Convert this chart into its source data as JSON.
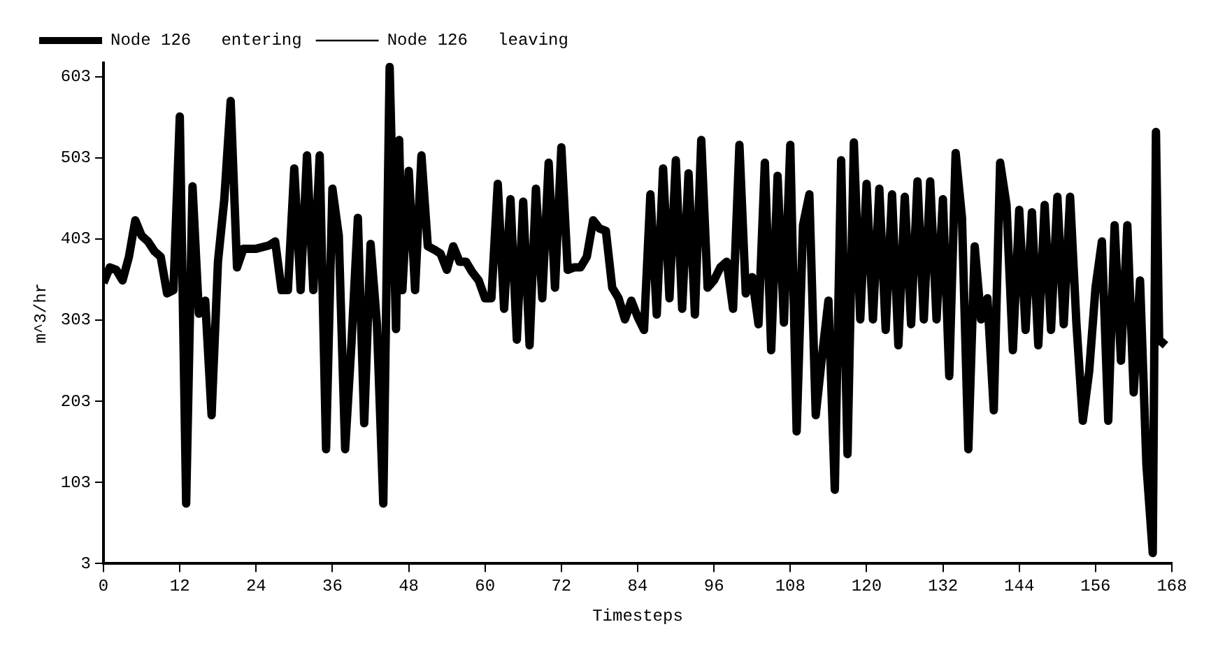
{
  "chart_data": {
    "type": "line",
    "xlabel": "Timesteps",
    "ylabel": "m^3/hr",
    "x": [
      0,
      1,
      2,
      3,
      4,
      5,
      6,
      7,
      8,
      9,
      10,
      11,
      12,
      13,
      14,
      15,
      16,
      17,
      18,
      19,
      20,
      21,
      22,
      24,
      26,
      27,
      28,
      29,
      30,
      31,
      32,
      33,
      34,
      35,
      36,
      37,
      38,
      39,
      40,
      41,
      42,
      43,
      44,
      45,
      46,
      46.5,
      47,
      48,
      49,
      50,
      51,
      52,
      53,
      54,
      55,
      56,
      57,
      58,
      59,
      60,
      61,
      62,
      63,
      64,
      65,
      66,
      67,
      68,
      69,
      70,
      71,
      72,
      73,
      74,
      75,
      76,
      77,
      78,
      79,
      80,
      81,
      82,
      83,
      84,
      85,
      86,
      87,
      88,
      89,
      90,
      91,
      92,
      93,
      94,
      95,
      96,
      97,
      98,
      99,
      100,
      101,
      102,
      103,
      104,
      105,
      106,
      107,
      108,
      109,
      110,
      111,
      112,
      113,
      114,
      115,
      116,
      117,
      118,
      119,
      120,
      121,
      122,
      123,
      124,
      125,
      126,
      127,
      128,
      129,
      130,
      131,
      132,
      133,
      134,
      135,
      136,
      137,
      138,
      139,
      140,
      141,
      142,
      143,
      144,
      145,
      146,
      147,
      148,
      149,
      150,
      151,
      152,
      153,
      154,
      155,
      156,
      157,
      158,
      159,
      160,
      161,
      162,
      163,
      164,
      165,
      165.5,
      166,
      167
    ],
    "series": [
      {
        "name": "Node 126   entering",
        "color": "#000000",
        "values": [
          349,
          368,
          365,
          352,
          381,
          426,
          407,
          400,
          388,
          381,
          336,
          340,
          554,
          77,
          468,
          311,
          327,
          186,
          375,
          452,
          573,
          368,
          391,
          391,
          395,
          400,
          340,
          340,
          490,
          340,
          506,
          340,
          506,
          144,
          465,
          407,
          144,
          275,
          429,
          176,
          397,
          298,
          77,
          615,
          292,
          525,
          340,
          487,
          340,
          506,
          394,
          390,
          385,
          365,
          394,
          375,
          375,
          362,
          352,
          330,
          330,
          471,
          317,
          452,
          279,
          449,
          272,
          465,
          330,
          497,
          343,
          516,
          365,
          368,
          368,
          381,
          426,
          416,
          413,
          343,
          330,
          304,
          327,
          307,
          291,
          458,
          310,
          490,
          330,
          500,
          317,
          484,
          310,
          525,
          343,
          352,
          368,
          375,
          317,
          519,
          336,
          356,
          298,
          497,
          266,
          481,
          300,
          519,
          166,
          420,
          458,
          186,
          259,
          327,
          94,
          500,
          138,
          522,
          304,
          471,
          304,
          465,
          291,
          458,
          272,
          455,
          298,
          474,
          304,
          474,
          304,
          452,
          234,
          509,
          429,
          144,
          394,
          304,
          330,
          192,
          497,
          445,
          266,
          439,
          291,
          436,
          272,
          445,
          291,
          455,
          298,
          455,
          298,
          179,
          240,
          343,
          400,
          179,
          420,
          253,
          420,
          214,
          352,
          125,
          16,
          535,
          279,
          272
        ]
      },
      {
        "name": "Node 126   leaving",
        "color": "#000000",
        "values": [
          null,
          null,
          null,
          null,
          null,
          null,
          null,
          null,
          null,
          null,
          null,
          null,
          null,
          null,
          null,
          null,
          null,
          null,
          null,
          null,
          null,
          null,
          null,
          null,
          null,
          null,
          null,
          null,
          null,
          null,
          null,
          null,
          null,
          null,
          null,
          null,
          null,
          null,
          null,
          null,
          null,
          null,
          null,
          null,
          null,
          null,
          null,
          null,
          null,
          null,
          null,
          null,
          null,
          null,
          null,
          null,
          null,
          null,
          null,
          null,
          null,
          null,
          null,
          null,
          null,
          null,
          null,
          null,
          null,
          null,
          null,
          null,
          null,
          null,
          null,
          null,
          null,
          null,
          null,
          null,
          null,
          null,
          null,
          null,
          null,
          null,
          null,
          null,
          null,
          null,
          null,
          null,
          null,
          null,
          null,
          null,
          null,
          null,
          null,
          null,
          null,
          null,
          null,
          null,
          null,
          null,
          null,
          null,
          null,
          null,
          null,
          null,
          null,
          null,
          null,
          null,
          null,
          null,
          null,
          null,
          null,
          null,
          null,
          null,
          null,
          null,
          null,
          null,
          null,
          null,
          null,
          null,
          null,
          null,
          null,
          null,
          null,
          null,
          null,
          null,
          null,
          null,
          null,
          null,
          null,
          null,
          null,
          null,
          null,
          null,
          null,
          null,
          null,
          null,
          null,
          null,
          null,
          null,
          null,
          null,
          null,
          null,
          null,
          null,
          null,
          null,
          null,
          null
        ]
      }
    ],
    "xlim": [
      0,
      168
    ],
    "xticks": [
      0,
      12,
      24,
      36,
      48,
      60,
      72,
      84,
      96,
      108,
      120,
      132,
      144,
      156,
      168
    ],
    "ylim": [
      3,
      620
    ],
    "yticks": [
      3,
      103,
      203,
      303,
      403,
      503,
      603
    ],
    "grid": false,
    "legend": "top left",
    "marker": "none",
    "line_style": "solid"
  }
}
